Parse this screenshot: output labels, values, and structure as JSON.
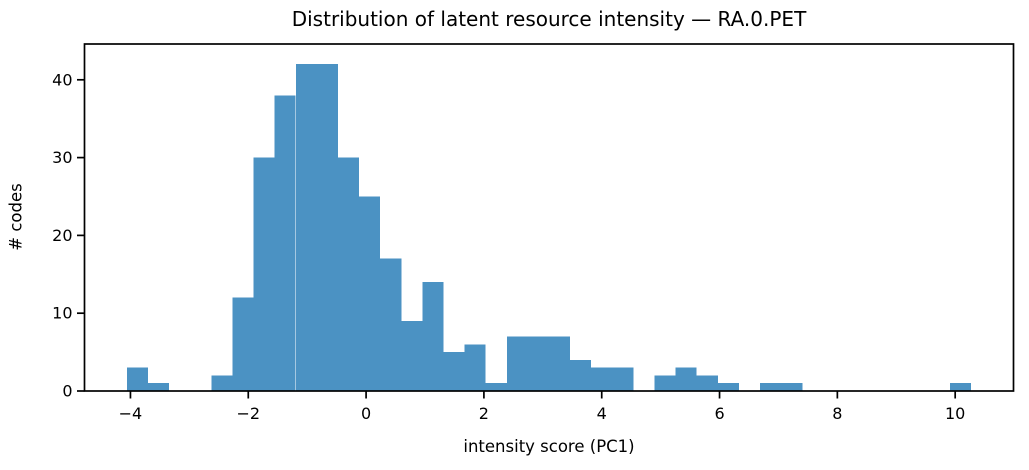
{
  "chart_data": {
    "type": "bar",
    "subtype": "histogram",
    "title": "Distribution of latent resource intensity — RA.0.PET",
    "xlabel": "intensity score (PC1)",
    "ylabel": "# codes",
    "bar_color": "#4b92c3",
    "axis_color": "#000000",
    "n_bins": 40,
    "bin_start": -4.06,
    "bin_width": 0.35825,
    "counts": [
      3,
      1,
      0,
      0,
      2,
      12,
      30,
      38,
      42,
      42,
      30,
      25,
      17,
      9,
      14,
      5,
      6,
      1,
      7,
      7,
      7,
      4,
      3,
      3,
      0,
      2,
      3,
      2,
      1,
      0,
      1,
      1,
      0,
      0,
      0,
      0,
      0,
      0,
      0,
      1
    ],
    "total_count": 319,
    "xticks": [
      -4,
      -2,
      0,
      2,
      4,
      6,
      8,
      10
    ],
    "xtick_labels": [
      "−4",
      "−2",
      "0",
      "2",
      "4",
      "6",
      "8",
      "10"
    ],
    "yticks": [
      0,
      10,
      20,
      30,
      40
    ],
    "ytick_labels": [
      "0",
      "10",
      "20",
      "30",
      "40"
    ],
    "xlim": [
      -4.78,
      10.99
    ],
    "ylim": [
      0,
      44.6
    ],
    "grid": false
  }
}
